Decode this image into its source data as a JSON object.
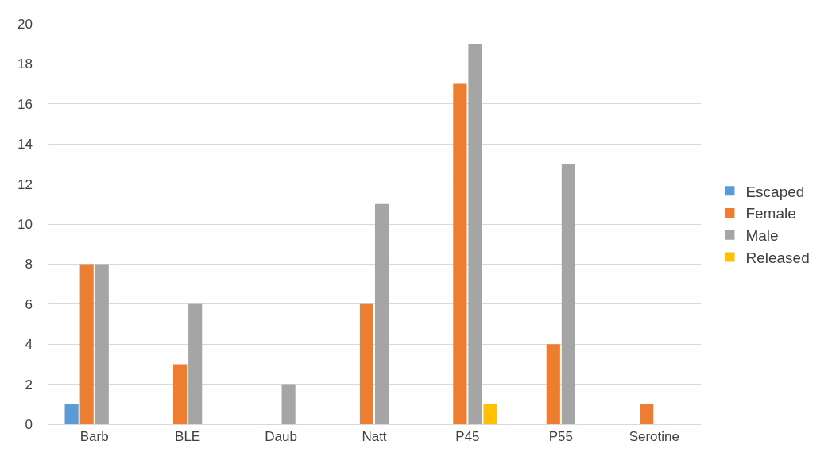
{
  "chart_data": {
    "type": "bar",
    "categories": [
      "Barb",
      "BLE",
      "Daub",
      "Natt",
      "P45",
      "P55",
      "Serotine"
    ],
    "series": [
      {
        "name": "Escaped",
        "color": "#5b9bd5",
        "values": [
          1,
          null,
          null,
          null,
          null,
          null,
          null
        ]
      },
      {
        "name": "Female",
        "color": "#ed7d31",
        "values": [
          8,
          3,
          null,
          6,
          17,
          4,
          1
        ]
      },
      {
        "name": "Male",
        "color": "#a5a5a5",
        "values": [
          8,
          6,
          2,
          11,
          19,
          13,
          null
        ]
      },
      {
        "name": "Released",
        "color": "#ffc000",
        "values": [
          null,
          null,
          null,
          null,
          1,
          null,
          null
        ]
      }
    ],
    "ylim": [
      0,
      20
    ],
    "yticks": [
      0,
      2,
      4,
      6,
      8,
      10,
      12,
      14,
      16,
      18,
      20
    ],
    "grid": "y",
    "legend": "right"
  }
}
